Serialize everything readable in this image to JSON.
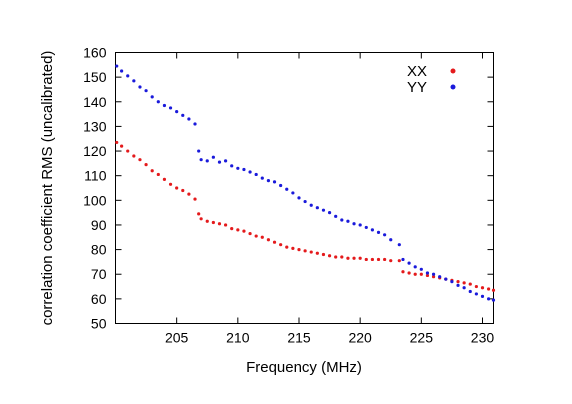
{
  "chart_data": {
    "type": "scatter",
    "title": "",
    "xlabel": "Frequency (MHz)",
    "ylabel": "correlation coefficient RMS (uncalibrated)",
    "xlim": [
      200.0,
      230.9
    ],
    "ylim": [
      50,
      160
    ],
    "x_ticks": [
      205,
      210,
      215,
      220,
      225,
      230
    ],
    "y_ticks": [
      50,
      60,
      70,
      80,
      90,
      100,
      110,
      120,
      130,
      140,
      150,
      160
    ],
    "grid": false,
    "legend_position": "top-right",
    "series": [
      {
        "name": "XX",
        "color": "#e41a1c",
        "points": [
          [
            200.1,
            123.5
          ],
          [
            200.5,
            122.0
          ],
          [
            201.0,
            120.0
          ],
          [
            201.5,
            118.0
          ],
          [
            202.0,
            116.5
          ],
          [
            202.5,
            114.5
          ],
          [
            203.0,
            112.0
          ],
          [
            203.5,
            110.5
          ],
          [
            204.0,
            108.5
          ],
          [
            204.5,
            106.5
          ],
          [
            205.0,
            105.0
          ],
          [
            205.5,
            104.0
          ],
          [
            206.0,
            102.5
          ],
          [
            206.5,
            100.5
          ],
          [
            206.8,
            94.5
          ],
          [
            207.0,
            92.5
          ],
          [
            207.5,
            91.5
          ],
          [
            208.0,
            91.0
          ],
          [
            208.5,
            90.5
          ],
          [
            209.0,
            90.0
          ],
          [
            209.5,
            88.5
          ],
          [
            210.0,
            88.0
          ],
          [
            210.5,
            87.5
          ],
          [
            211.0,
            86.5
          ],
          [
            211.5,
            85.5
          ],
          [
            212.0,
            85.0
          ],
          [
            212.5,
            84.0
          ],
          [
            213.0,
            83.0
          ],
          [
            213.5,
            82.0
          ],
          [
            214.0,
            81.0
          ],
          [
            214.5,
            80.5
          ],
          [
            215.0,
            80.0
          ],
          [
            215.5,
            79.5
          ],
          [
            216.0,
            79.0
          ],
          [
            216.5,
            78.5
          ],
          [
            217.0,
            78.0
          ],
          [
            217.5,
            77.5
          ],
          [
            218.0,
            77.0
          ],
          [
            218.5,
            77.0
          ],
          [
            219.0,
            76.5
          ],
          [
            219.5,
            76.5
          ],
          [
            220.0,
            76.5
          ],
          [
            220.5,
            76.0
          ],
          [
            221.0,
            76.0
          ],
          [
            221.5,
            76.0
          ],
          [
            222.0,
            76.0
          ],
          [
            222.5,
            75.5
          ],
          [
            223.2,
            75.5
          ],
          [
            223.5,
            71.0
          ],
          [
            224.0,
            70.5
          ],
          [
            224.5,
            70.0
          ],
          [
            225.0,
            70.0
          ],
          [
            225.5,
            69.5
          ],
          [
            226.0,
            69.0
          ],
          [
            226.5,
            68.5
          ],
          [
            227.0,
            68.0
          ],
          [
            227.5,
            67.5
          ],
          [
            228.0,
            67.0
          ],
          [
            228.5,
            66.5
          ],
          [
            229.0,
            66.0
          ],
          [
            229.5,
            65.0
          ],
          [
            230.0,
            64.5
          ],
          [
            230.5,
            64.0
          ],
          [
            230.9,
            63.5
          ]
        ]
      },
      {
        "name": "YY",
        "color": "#1a1adb",
        "points": [
          [
            200.1,
            154.5
          ],
          [
            200.5,
            152.5
          ],
          [
            201.0,
            150.5
          ],
          [
            201.5,
            148.5
          ],
          [
            202.0,
            146.0
          ],
          [
            202.5,
            144.5
          ],
          [
            203.0,
            142.0
          ],
          [
            203.5,
            140.0
          ],
          [
            204.0,
            138.5
          ],
          [
            204.5,
            137.5
          ],
          [
            205.0,
            136.0
          ],
          [
            205.5,
            134.5
          ],
          [
            206.0,
            133.0
          ],
          [
            206.5,
            131.0
          ],
          [
            206.8,
            120.0
          ],
          [
            207.0,
            116.5
          ],
          [
            207.5,
            116.0
          ],
          [
            208.0,
            117.5
          ],
          [
            208.5,
            115.5
          ],
          [
            209.0,
            116.0
          ],
          [
            209.5,
            114.0
          ],
          [
            210.0,
            113.0
          ],
          [
            210.5,
            112.5
          ],
          [
            211.0,
            111.5
          ],
          [
            211.5,
            110.5
          ],
          [
            212.0,
            109.0
          ],
          [
            212.5,
            108.0
          ],
          [
            213.0,
            107.5
          ],
          [
            213.5,
            106.0
          ],
          [
            214.0,
            104.5
          ],
          [
            214.5,
            103.0
          ],
          [
            215.0,
            101.0
          ],
          [
            215.5,
            99.5
          ],
          [
            216.0,
            98.0
          ],
          [
            216.5,
            97.0
          ],
          [
            217.0,
            96.0
          ],
          [
            217.5,
            95.0
          ],
          [
            218.0,
            93.5
          ],
          [
            218.5,
            92.0
          ],
          [
            219.0,
            91.5
          ],
          [
            219.5,
            90.5
          ],
          [
            220.0,
            90.0
          ],
          [
            220.5,
            89.0
          ],
          [
            221.0,
            88.0
          ],
          [
            221.5,
            87.0
          ],
          [
            222.0,
            86.0
          ],
          [
            222.5,
            84.0
          ],
          [
            223.2,
            82.0
          ],
          [
            223.5,
            76.0
          ],
          [
            224.0,
            74.5
          ],
          [
            224.5,
            73.0
          ],
          [
            225.0,
            72.0
          ],
          [
            225.5,
            70.5
          ],
          [
            226.0,
            70.0
          ],
          [
            226.5,
            69.0
          ],
          [
            227.0,
            68.0
          ],
          [
            227.5,
            67.0
          ],
          [
            228.0,
            65.5
          ],
          [
            228.5,
            64.5
          ],
          [
            229.0,
            63.0
          ],
          [
            229.5,
            62.0
          ],
          [
            230.0,
            61.0
          ],
          [
            230.5,
            60.0
          ],
          [
            230.9,
            59.5
          ]
        ]
      }
    ]
  }
}
